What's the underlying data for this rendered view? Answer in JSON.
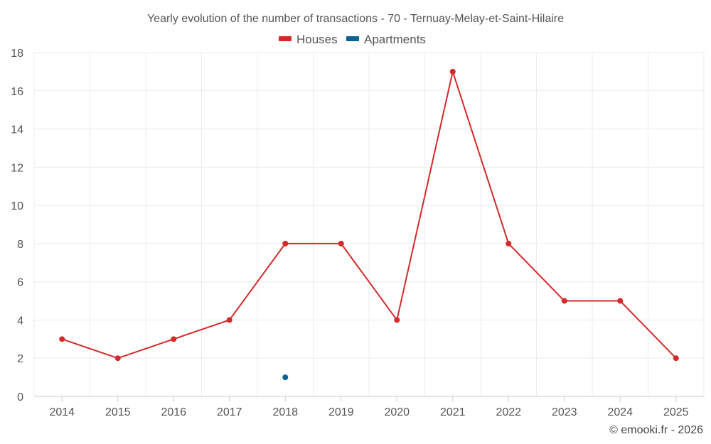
{
  "chart_data": {
    "type": "line",
    "title": "Yearly evolution of the number of transactions - 70 - Ternuay-Melay-et-Saint-Hilaire",
    "categories": [
      "2014",
      "2015",
      "2016",
      "2017",
      "2018",
      "2019",
      "2020",
      "2021",
      "2022",
      "2023",
      "2024",
      "2025"
    ],
    "series": [
      {
        "name": "Houses",
        "color": "#d42a2a",
        "values": [
          3,
          2,
          3,
          4,
          8,
          8,
          4,
          17,
          8,
          5,
          5,
          2
        ]
      },
      {
        "name": "Apartments",
        "color": "#0a6296",
        "values": [
          null,
          null,
          null,
          null,
          1,
          null,
          null,
          null,
          null,
          null,
          null,
          null
        ]
      }
    ],
    "yticks": [
      "0",
      "2",
      "4",
      "6",
      "8",
      "10",
      "12",
      "14",
      "16",
      "18"
    ],
    "ylim": [
      0,
      18
    ],
    "grid": true,
    "legend_position": "top-center",
    "xlabel": "",
    "ylabel": ""
  },
  "credit": "© emooki.fr - 2026"
}
